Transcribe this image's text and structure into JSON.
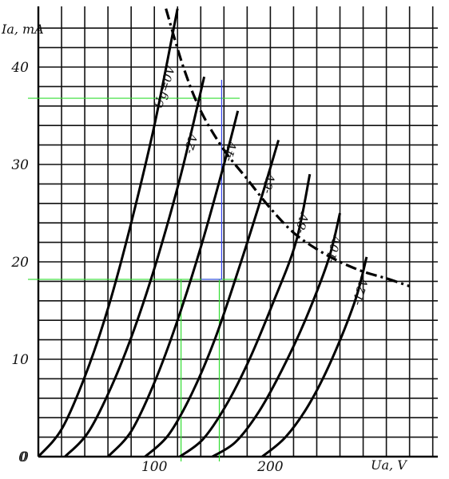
{
  "chart_data": {
    "type": "line",
    "xlabel": "Ua, V",
    "ylabel": "Ia, mA",
    "xlim": [
      0,
      340
    ],
    "ylim": [
      0,
      45
    ],
    "x_ticks": [
      "100",
      "200"
    ],
    "x_tick_values": [
      100,
      200
    ],
    "y_ticks": [
      "0",
      "10",
      "20",
      "30",
      "40"
    ],
    "y_tick_values": [
      0,
      10,
      20,
      30,
      40
    ],
    "grid": true,
    "series": [
      {
        "name": "Ug=0V",
        "x": [
          0,
          20,
          40,
          60,
          80,
          100,
          120
        ],
        "y": [
          0,
          2.8,
          8.2,
          15.2,
          24,
          34,
          46
        ]
      },
      {
        "name": "-2V",
        "x": [
          23,
          43,
          63,
          83,
          103,
          123,
          143
        ],
        "y": [
          0,
          2.5,
          7.2,
          13.2,
          20.5,
          29,
          39
        ]
      },
      {
        "name": "-4V",
        "x": [
          60,
          80,
          100,
          120,
          140,
          160,
          172
        ],
        "y": [
          0,
          2.6,
          7.6,
          14,
          21.5,
          30,
          35.5
        ]
      },
      {
        "name": "-6V",
        "x": [
          92,
          112,
          132,
          152,
          172,
          192,
          207
        ],
        "y": [
          0,
          2.2,
          6.4,
          12,
          19,
          26.5,
          32.5
        ]
      },
      {
        "name": "-8V",
        "x": [
          122,
          142,
          162,
          182,
          202,
          222,
          234
        ],
        "y": [
          0,
          1.8,
          5.3,
          10,
          15.7,
          22,
          29
        ]
      },
      {
        "name": "-10V",
        "x": [
          150,
          170,
          190,
          210,
          230,
          250,
          260
        ],
        "y": [
          0,
          1.5,
          4.6,
          8.9,
          14,
          20.2,
          25
        ]
      },
      {
        "name": "-12V",
        "x": [
          193,
          213,
          233,
          253,
          273,
          283
        ],
        "y": [
          0,
          2,
          5.3,
          10,
          16,
          20.5
        ]
      }
    ],
    "load_line": {
      "x": [
        110,
        125,
        140,
        160,
        180,
        200,
        220,
        240,
        260,
        280,
        300,
        320
      ],
      "y": [
        46,
        40,
        35.5,
        31.5,
        28.5,
        25.5,
        23,
        21.3,
        20,
        19,
        18.3,
        17.5
      ]
    },
    "markers": {
      "green_h": [
        36.8,
        18.2
      ],
      "green_v": [
        123,
        156
      ],
      "blue_h": [
        18.2
      ],
      "blue_v": [
        158
      ]
    }
  }
}
